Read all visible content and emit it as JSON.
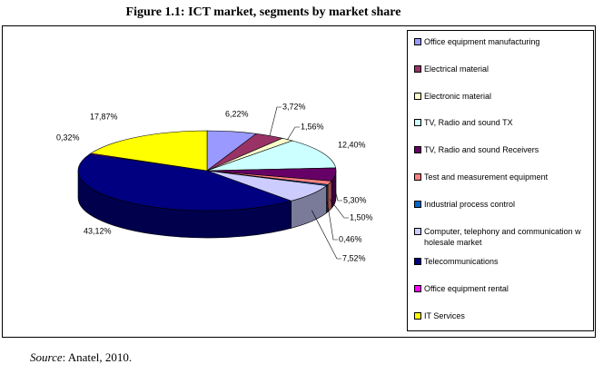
{
  "chart_data": {
    "type": "pie",
    "title": "Figure 1.1: ICT market, segments by market share",
    "categories": [
      "Office equipment manufacturing",
      "Electrical material",
      "Electronic material",
      "TV, Radio and sound TX",
      "TV, Radio and sound Receivers",
      "Test and measurement equipment",
      "Industrial process control",
      "Computer, telephony and communication w holesale market",
      "Telecommunications",
      "Office equipment rental",
      "IT Services"
    ],
    "values": [
      6.22,
      3.72,
      1.56,
      12.4,
      5.3,
      1.5,
      0.46,
      7.52,
      43.12,
      0.32,
      17.87
    ],
    "value_labels": [
      "6,22%",
      "3,72%",
      "1,56%",
      "12,40%",
      "5,30%",
      "1,50%",
      "0,46%",
      "7,52%",
      "43,12%",
      "0,32%",
      "17,87%"
    ],
    "colors": [
      "#9999ff",
      "#993366",
      "#ffffcc",
      "#ccffff",
      "#660066",
      "#ff8080",
      "#0066cc",
      "#ccccff",
      "#000080",
      "#ff00ff",
      "#ffff00"
    ],
    "source": {
      "label": "Source",
      "text": ": Anatel, 2010."
    }
  }
}
